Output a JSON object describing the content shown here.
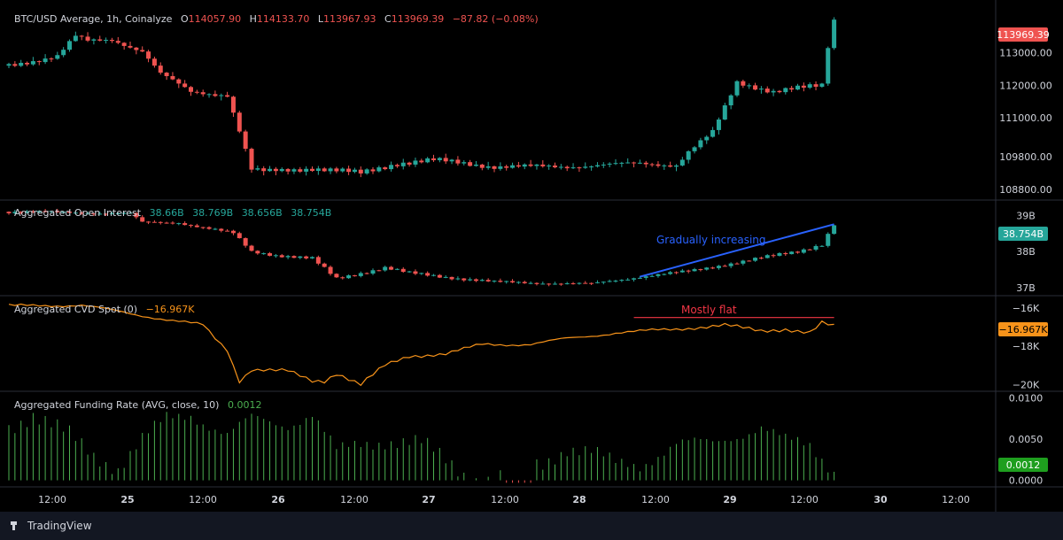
{
  "colors": {
    "up": "#26a69a",
    "down": "#ef5350",
    "cvd": "#f7931a",
    "funding": "#4caf50",
    "trendline_blue": "#2962ff",
    "trendline_red": "#f23645",
    "grid": "#2a2e39",
    "bg": "#000000"
  },
  "header": {
    "price_legend": {
      "title": "BTC/USD Average, 1h, Coinalyze",
      "o_label": "O",
      "o": "114057.90",
      "h_label": "H",
      "h": "114133.70",
      "l_label": "L",
      "l": "113967.93",
      "c_label": "C",
      "c": "113969.39",
      "chg": "−87.82 (−0.08%)"
    },
    "oi_legend": {
      "title": "Aggregated Open Interest",
      "values": [
        "38.66B",
        "38.769B",
        "38.656B",
        "38.754B"
      ]
    },
    "cvd_legend": {
      "title": "Aggregated CVD Spot (0)",
      "value": "−16.967K"
    },
    "fr_legend": {
      "title": "Aggregated Funding Rate (AVG, close, 10)",
      "value": "0.0012"
    }
  },
  "annotations": {
    "oi": "Gradually increasing",
    "cvd": "Mostly flat"
  },
  "brand": "TradingView",
  "chart_data": [
    {
      "type": "candlestick",
      "title": "BTC/USD Average, 1h, Coinalyze",
      "x_ticks": [
        "12:00",
        "25",
        "12:00",
        "26",
        "12:00",
        "27",
        "12:00",
        "28",
        "12:00",
        "29",
        "12:00",
        "30",
        "12:00"
      ],
      "y_ticks": [
        "113000.00",
        "112000.00",
        "111000.00",
        "109800.00",
        "108800.00"
      ],
      "y_tick_values": [
        113000,
        112000,
        111000,
        109800,
        108800
      ],
      "last_value": "113969.39",
      "keypoints": [
        {
          "i": 0,
          "v": 112600
        },
        {
          "i": 8,
          "v": 112900
        },
        {
          "i": 11,
          "v": 113500
        },
        {
          "i": 13,
          "v": 113350
        },
        {
          "i": 17,
          "v": 113400
        },
        {
          "i": 22,
          "v": 113050
        },
        {
          "i": 25,
          "v": 112350
        },
        {
          "i": 30,
          "v": 111800
        },
        {
          "i": 36,
          "v": 111700
        },
        {
          "i": 38,
          "v": 110600
        },
        {
          "i": 40,
          "v": 109400
        },
        {
          "i": 42,
          "v": 109350
        },
        {
          "i": 50,
          "v": 109450
        },
        {
          "i": 58,
          "v": 109300
        },
        {
          "i": 64,
          "v": 109600
        },
        {
          "i": 70,
          "v": 109700
        },
        {
          "i": 80,
          "v": 109500
        },
        {
          "i": 92,
          "v": 109500
        },
        {
          "i": 104,
          "v": 109600
        },
        {
          "i": 110,
          "v": 109550
        },
        {
          "i": 112,
          "v": 109950
        },
        {
          "i": 116,
          "v": 110550
        },
        {
          "i": 120,
          "v": 112100
        },
        {
          "i": 126,
          "v": 111800
        },
        {
          "i": 130,
          "v": 111900
        },
        {
          "i": 134,
          "v": 112000
        },
        {
          "i": 135,
          "v": 113200
        },
        {
          "i": 136,
          "v": 114000
        }
      ],
      "ylim": [
        108500,
        114400
      ],
      "n_bars": 137
    },
    {
      "type": "candlestick",
      "title": "Aggregated Open Interest",
      "y_ticks": [
        "39B",
        "38B",
        "37B"
      ],
      "y_tick_values": [
        39,
        38,
        37
      ],
      "last_value": "38.754B",
      "keypoints": [
        {
          "i": 0,
          "v": 39.1
        },
        {
          "i": 20,
          "v": 39.05
        },
        {
          "i": 22,
          "v": 38.8
        },
        {
          "i": 28,
          "v": 38.8
        },
        {
          "i": 37,
          "v": 38.5
        },
        {
          "i": 40,
          "v": 38.0
        },
        {
          "i": 44,
          "v": 37.9
        },
        {
          "i": 50,
          "v": 37.8
        },
        {
          "i": 54,
          "v": 37.25
        },
        {
          "i": 62,
          "v": 37.55
        },
        {
          "i": 66,
          "v": 37.4
        },
        {
          "i": 80,
          "v": 37.15
        },
        {
          "i": 96,
          "v": 37.1
        },
        {
          "i": 104,
          "v": 37.3
        },
        {
          "i": 112,
          "v": 37.45
        },
        {
          "i": 120,
          "v": 37.7
        },
        {
          "i": 130,
          "v": 38.0
        },
        {
          "i": 134,
          "v": 38.2
        },
        {
          "i": 136,
          "v": 38.754
        }
      ],
      "ylim": [
        36.8,
        39.35
      ],
      "trendline": {
        "from": {
          "i": 104,
          "v": 37.3
        },
        "to": {
          "i": 136,
          "v": 38.754
        }
      }
    },
    {
      "type": "line",
      "title": "Aggregated CVD Spot (0)",
      "y_ticks": [
        "−16K",
        "−18K",
        "−20K"
      ],
      "y_tick_values": [
        -16,
        -18,
        -20
      ],
      "last_value": "−16.967K",
      "keypoints": [
        {
          "i": 0,
          "v": -15.9
        },
        {
          "i": 12,
          "v": -15.85
        },
        {
          "i": 20,
          "v": -16.3
        },
        {
          "i": 26,
          "v": -16.6
        },
        {
          "i": 32,
          "v": -16.9
        },
        {
          "i": 34,
          "v": -17.6
        },
        {
          "i": 36,
          "v": -18.2
        },
        {
          "i": 38,
          "v": -19.8
        },
        {
          "i": 40,
          "v": -19.2
        },
        {
          "i": 46,
          "v": -19.3
        },
        {
          "i": 50,
          "v": -19.8
        },
        {
          "i": 52,
          "v": -19.8
        },
        {
          "i": 54,
          "v": -19.4
        },
        {
          "i": 58,
          "v": -20.0
        },
        {
          "i": 62,
          "v": -19.0
        },
        {
          "i": 66,
          "v": -18.5
        },
        {
          "i": 72,
          "v": -18.4
        },
        {
          "i": 78,
          "v": -17.9
        },
        {
          "i": 86,
          "v": -17.9
        },
        {
          "i": 92,
          "v": -17.6
        },
        {
          "i": 100,
          "v": -17.3
        },
        {
          "i": 110,
          "v": -17.1
        },
        {
          "i": 118,
          "v": -16.9
        },
        {
          "i": 124,
          "v": -17.2
        },
        {
          "i": 128,
          "v": -17.1
        },
        {
          "i": 132,
          "v": -17.3
        },
        {
          "i": 134,
          "v": -16.8
        },
        {
          "i": 136,
          "v": -16.967
        }
      ],
      "ylim": [
        -20.3,
        -15.5
      ],
      "flat_line": {
        "from_i": 103,
        "to_i": 136,
        "v": -16.5
      }
    },
    {
      "type": "bar",
      "title": "Aggregated Funding Rate (AVG, close, 10)",
      "y_ticks": [
        "0.0100",
        "0.0050",
        "0.0000"
      ],
      "y_tick_values": [
        0.01,
        0.005,
        0.0
      ],
      "last_value": "0.0012",
      "keypoints": [
        {
          "i": 0,
          "v": 0.0065
        },
        {
          "i": 4,
          "v": 0.008
        },
        {
          "i": 10,
          "v": 0.0055
        },
        {
          "i": 14,
          "v": 0.003
        },
        {
          "i": 18,
          "v": 0.0015
        },
        {
          "i": 22,
          "v": 0.005
        },
        {
          "i": 26,
          "v": 0.0075
        },
        {
          "i": 30,
          "v": 0.008
        },
        {
          "i": 36,
          "v": 0.0055
        },
        {
          "i": 40,
          "v": 0.0075
        },
        {
          "i": 46,
          "v": 0.0068
        },
        {
          "i": 50,
          "v": 0.008
        },
        {
          "i": 54,
          "v": 0.0035
        },
        {
          "i": 58,
          "v": 0.0045
        },
        {
          "i": 62,
          "v": 0.0048
        },
        {
          "i": 68,
          "v": 0.0045
        },
        {
          "i": 72,
          "v": 0.0025
        },
        {
          "i": 76,
          "v": 0.0003
        },
        {
          "i": 80,
          "v": 0.0
        },
        {
          "i": 84,
          "v": 0.0015
        },
        {
          "i": 88,
          "v": 0.002
        },
        {
          "i": 92,
          "v": 0.004
        },
        {
          "i": 96,
          "v": 0.0035
        },
        {
          "i": 100,
          "v": 0.002
        },
        {
          "i": 104,
          "v": 0.0018
        },
        {
          "i": 110,
          "v": 0.0045
        },
        {
          "i": 116,
          "v": 0.0045
        },
        {
          "i": 120,
          "v": 0.0055
        },
        {
          "i": 124,
          "v": 0.0065
        },
        {
          "i": 128,
          "v": 0.0048
        },
        {
          "i": 132,
          "v": 0.0042
        },
        {
          "i": 136,
          "v": 0.0012
        }
      ],
      "ylim": [
        -0.0008,
        0.0105
      ]
    }
  ]
}
